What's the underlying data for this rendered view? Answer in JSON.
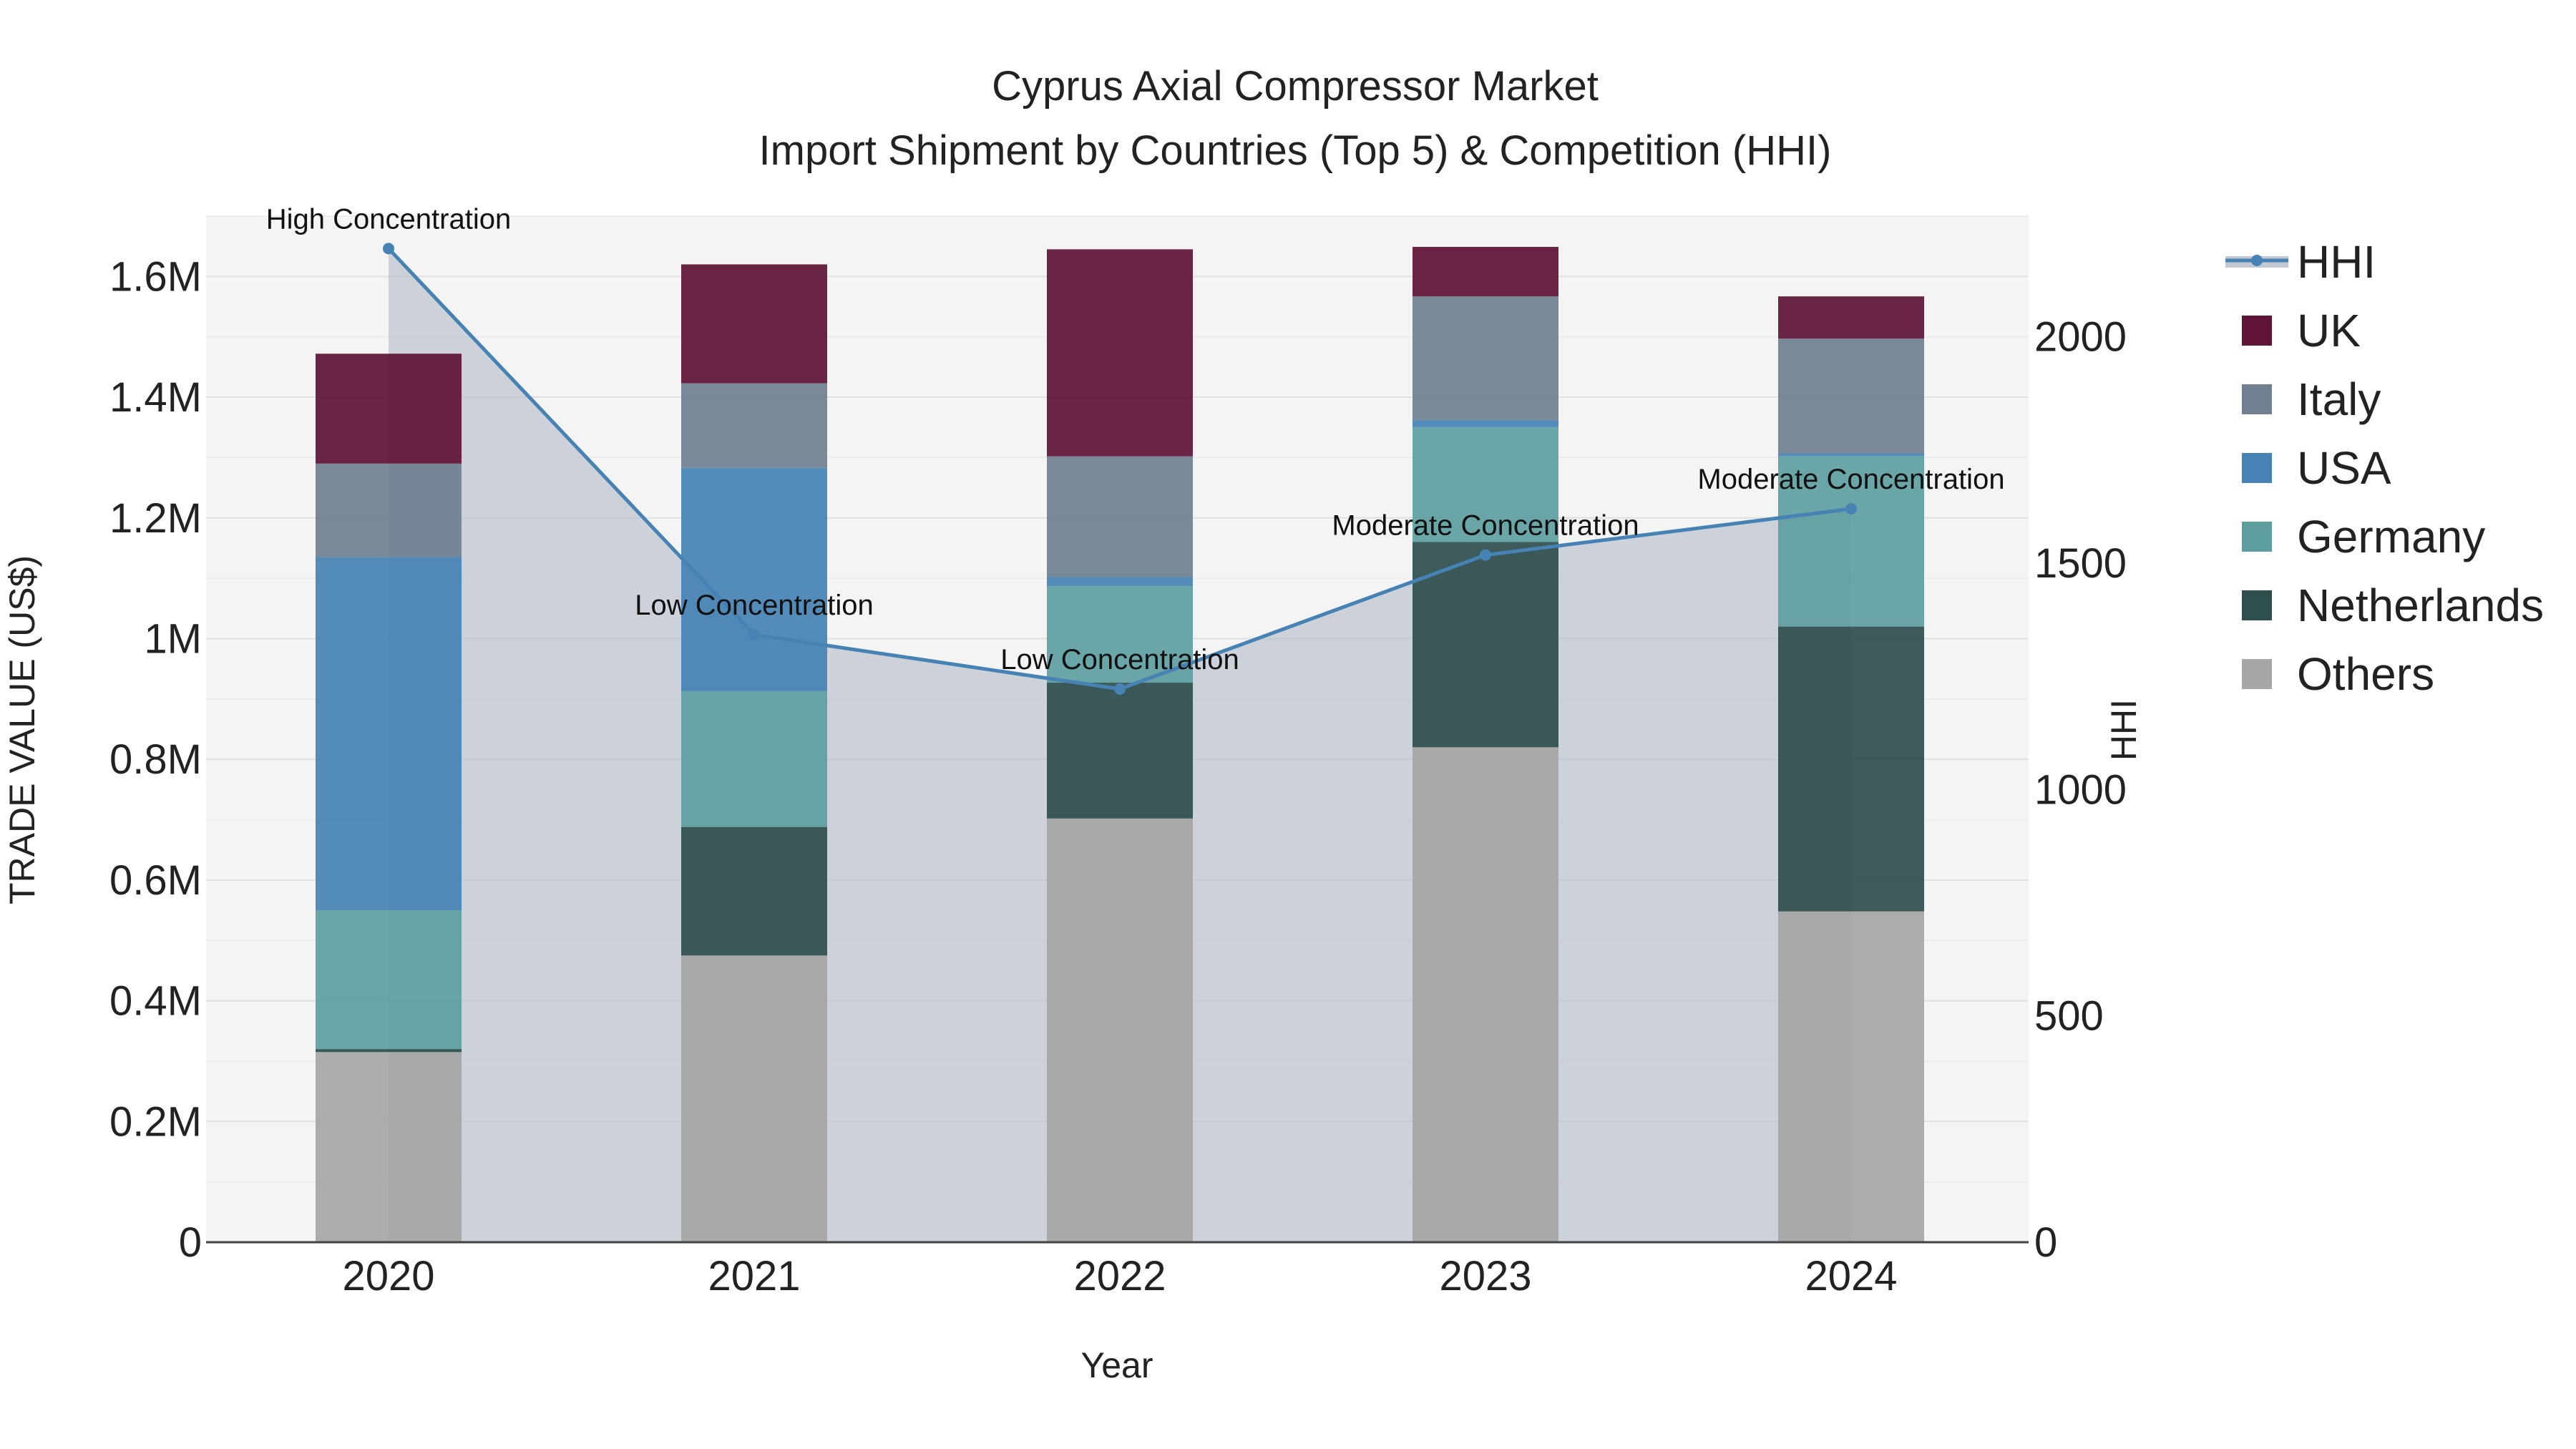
{
  "chart_data": {
    "type": "bar",
    "stacked": true,
    "title_line1": "Cyprus Axial Compressor Market",
    "title_line2": "Import Shipment by Countries (Top 5) & Competition (HHI)",
    "xlabel": "Year",
    "ylabel": "TRADE VALUE (US$)",
    "y2label": "HHI",
    "categories": [
      "2020",
      "2021",
      "2022",
      "2023",
      "2024"
    ],
    "ylim": [
      0,
      1700000
    ],
    "y2lim": [
      0,
      2266.67
    ],
    "yticks": [
      {
        "value": 0,
        "label": "0"
      },
      {
        "value": 200000,
        "label": "0.2M"
      },
      {
        "value": 400000,
        "label": "0.4M"
      },
      {
        "value": 600000,
        "label": "0.6M"
      },
      {
        "value": 800000,
        "label": "0.8M"
      },
      {
        "value": 1000000,
        "label": "1M"
      },
      {
        "value": 1200000,
        "label": "1.2M"
      },
      {
        "value": 1400000,
        "label": "1.4M"
      },
      {
        "value": 1600000,
        "label": "1.6M"
      }
    ],
    "y2ticks": [
      {
        "value": 0,
        "label": "0"
      },
      {
        "value": 500,
        "label": "500"
      },
      {
        "value": 1000,
        "label": "1000"
      },
      {
        "value": 1500,
        "label": "1500"
      },
      {
        "value": 2000,
        "label": "2000"
      }
    ],
    "series": [
      {
        "name": "Others",
        "color": "#a6a6a6",
        "values": [
          315000,
          475000,
          702000,
          820000,
          548000
        ]
      },
      {
        "name": "Netherlands",
        "color": "#2f4f4f",
        "values": [
          5000,
          213000,
          225000,
          340000,
          472000
        ]
      },
      {
        "name": "Germany",
        "color": "#5f9ea0",
        "values": [
          230000,
          225000,
          160000,
          190000,
          282000
        ]
      },
      {
        "name": "USA",
        "color": "#4682b4",
        "values": [
          585000,
          370000,
          15000,
          12000,
          5000
        ]
      },
      {
        "name": "Italy",
        "color": "#708090",
        "values": [
          155000,
          140000,
          200000,
          205000,
          190000
        ]
      },
      {
        "name": "UK",
        "color": "#601436",
        "values": [
          182000,
          197000,
          343000,
          82000,
          70000
        ]
      }
    ],
    "hhi": {
      "name": "HHI",
      "color": "#4682b4",
      "values": [
        2195,
        1342,
        1222,
        1518,
        1620
      ],
      "annotations": [
        "High Concentration",
        "Low Concentration",
        "Low Concentration",
        "Moderate Concentration",
        "Moderate Concentration"
      ]
    },
    "legend_order": [
      "HHI",
      "UK",
      "Italy",
      "USA",
      "Germany",
      "Netherlands",
      "Others"
    ],
    "legend_position": "right"
  }
}
